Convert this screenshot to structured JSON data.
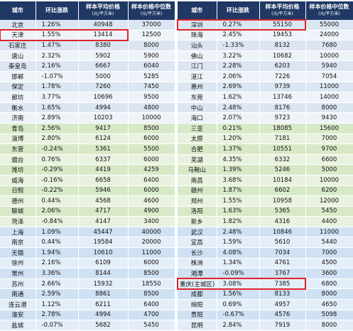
{
  "tables": [
    {
      "headers": [
        {
          "label": "城市"
        },
        {
          "label": "环比涨跌"
        },
        {
          "label": "样本平均价格",
          "unit": "(元/平方米)"
        },
        {
          "label": "样本价格中位数",
          "unit": "(元/平方米)"
        }
      ],
      "highlighted": [
        1
      ],
      "rows": [
        [
          "北京",
          "1.26%",
          "40948",
          "37000"
        ],
        [
          "天津",
          "1.55%",
          "13414",
          "12500"
        ],
        [
          "石家庄",
          "1.47%",
          "8380",
          "8000"
        ],
        [
          "唐山",
          "2.32%",
          "5902",
          "5900"
        ],
        [
          "秦皇岛",
          "2.16%",
          "6667",
          "6040"
        ],
        [
          "邯郸",
          "-1.07%",
          "5000",
          "5285"
        ],
        [
          "保定",
          "1.78%",
          "7260",
          "7450"
        ],
        [
          "廊坊",
          "3.77%",
          "10696",
          "9500"
        ],
        [
          "衡水",
          "1.65%",
          "4994",
          "4800"
        ],
        [
          "济南",
          "2.89%",
          "10203",
          "10000"
        ],
        [
          "青岛",
          "2.56%",
          "9417",
          "8500"
        ],
        [
          "淄博",
          "2.80%",
          "6124",
          "6000"
        ],
        [
          "东营",
          "-0.24%",
          "5361",
          "5500"
        ],
        [
          "烟台",
          "0.76%",
          "6337",
          "6000"
        ],
        [
          "潍坊",
          "-0.29%",
          "4419",
          "4259"
        ],
        [
          "威海",
          "-0.16%",
          "6658",
          "6400"
        ],
        [
          "日照",
          "-0.22%",
          "5946",
          "6000"
        ],
        [
          "德州",
          "0.44%",
          "4568",
          "4600"
        ],
        [
          "聊城",
          "2.06%",
          "4717",
          "4900"
        ],
        [
          "菏泽",
          "-0.84%",
          "4147",
          "3400"
        ],
        [
          "上海",
          "1.09%",
          "45447",
          "40000"
        ],
        [
          "南京",
          "0.44%",
          "19584",
          "20000"
        ],
        [
          "无锡",
          "1.94%",
          "10610",
          "11000"
        ],
        [
          "徐州",
          "2.16%",
          "6109",
          "6000"
        ],
        [
          "常州",
          "3.36%",
          "8144",
          "8500"
        ],
        [
          "苏州",
          "2.66%",
          "15932",
          "18550"
        ],
        [
          "南通",
          "2.59%",
          "8861",
          "8500"
        ],
        [
          "连云港",
          "1.12%",
          "6211",
          "6400"
        ],
        [
          "淮安",
          "2.78%",
          "4994",
          "4700"
        ],
        [
          "盐城",
          "-0.07%",
          "5682",
          "5450"
        ]
      ]
    },
    {
      "headers": [
        {
          "label": "城市"
        },
        {
          "label": "环比涨跌"
        },
        {
          "label": "样本平均价格",
          "unit": "(元/平方米)"
        },
        {
          "label": "样本价格中位数",
          "unit": "(元/平方米)"
        }
      ],
      "highlighted": [
        0,
        25
      ],
      "rows": [
        [
          "深圳",
          "0.27%",
          "55150",
          "55000"
        ],
        [
          "珠海",
          "2.45%",
          "19453",
          "24000"
        ],
        [
          "汕头",
          "-1.33%",
          "8132",
          "7680"
        ],
        [
          "佛山",
          "3.22%",
          "10682",
          "10000"
        ],
        [
          "江门",
          "2.28%",
          "6203",
          "5940"
        ],
        [
          "湛江",
          "2.06%",
          "7226",
          "7054"
        ],
        [
          "惠州",
          "2.69%",
          "9739",
          "11000"
        ],
        [
          "东莞",
          "1.62%",
          "13746",
          "14000"
        ],
        [
          "中山",
          "2.48%",
          "8176",
          "8000"
        ],
        [
          "海口",
          "2.07%",
          "9723",
          "9430"
        ],
        [
          "三亚",
          "0.21%",
          "18085",
          "15600"
        ],
        [
          "太原",
          "1.20%",
          "7181",
          "7000"
        ],
        [
          "合肥",
          "1.37%",
          "10551",
          "9700"
        ],
        [
          "芜湖",
          "4.35%",
          "6332",
          "6600"
        ],
        [
          "马鞍山",
          "1.39%",
          "5246",
          "5000"
        ],
        [
          "南昌",
          "3.68%",
          "10184",
          "10000"
        ],
        [
          "赣州",
          "1.87%",
          "6602",
          "6200"
        ],
        [
          "郑州",
          "1.55%",
          "10958",
          "12000"
        ],
        [
          "洛阳",
          "1.63%",
          "5365",
          "5450"
        ],
        [
          "新乡",
          "1.82%",
          "4316",
          "4400"
        ],
        [
          "武汉",
          "2.48%",
          "10846",
          "11000"
        ],
        [
          "宜昌",
          "1.59%",
          "5610",
          "5440"
        ],
        [
          "长沙",
          "4.08%",
          "7034",
          "7000"
        ],
        [
          "株洲",
          "1.34%",
          "4761",
          "4500"
        ],
        [
          "湘潭",
          "-0.09%",
          "3767",
          "3600"
        ],
        [
          "重庆(主城区)",
          "3.08%",
          "7385",
          "6800"
        ],
        [
          "成都",
          "1.56%",
          "8133",
          "8000"
        ],
        [
          "绵阳",
          "0.69%",
          "4957",
          "4650"
        ],
        [
          "贵阳",
          "-0.67%",
          "4576",
          "5098"
        ],
        [
          "昆明",
          "2.84%",
          "7919",
          "8000"
        ]
      ]
    }
  ]
}
